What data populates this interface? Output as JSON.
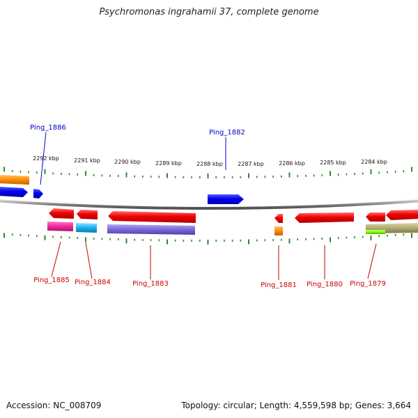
{
  "title": "Psychromonas ingrahamii 37, complete genome",
  "footer": {
    "accession": "Accession: NC_008709",
    "summary": "Topology: circular; Length: 4,559,598 bp; Genes: 3,664"
  },
  "scale_labels": [
    "2292 kbp",
    "2291 kbp",
    "2290 kbp",
    "2289 kbp",
    "2288 kbp",
    "2287 kbp",
    "2286 kbp",
    "2285 kbp",
    "2284 kbp"
  ],
  "gene_labels": {
    "top": [
      {
        "text": "Ping_1886",
        "color": "#0000cc"
      },
      {
        "text": "Ping_1882",
        "color": "#0000cc"
      }
    ],
    "bottom": [
      {
        "text": "Ping_1885",
        "color": "#cc0000"
      },
      {
        "text": "Ping_1884",
        "color": "#cc0000"
      },
      {
        "text": "Ping_1883",
        "color": "#cc0000"
      },
      {
        "text": "Ping_1881",
        "color": "#cc0000"
      },
      {
        "text": "Ping_1880",
        "color": "#cc0000"
      },
      {
        "text": "Ping_1879",
        "color": "#cc0000"
      }
    ]
  },
  "colors": {
    "backbone": "#888888",
    "tick": "#2a8a2a",
    "forward_gene": "#0000ee",
    "reverse_gene": "#ee0000",
    "orange": "#ff8c00",
    "magenta": "#ee2a9a",
    "cyan": "#1ab0ee",
    "purple": "#7b68d8",
    "olive": "#b0a870",
    "lime": "#7cff00"
  }
}
